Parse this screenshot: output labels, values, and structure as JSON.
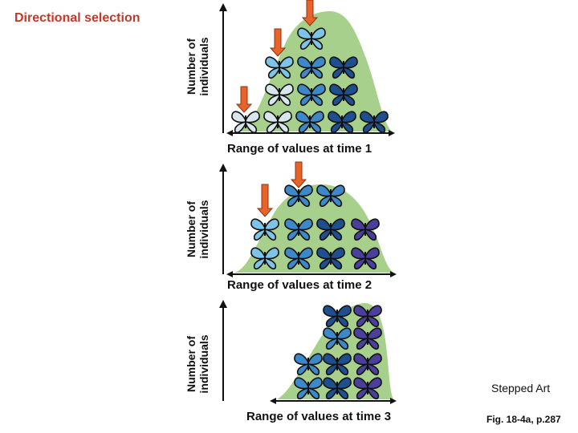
{
  "title": "Directional selection",
  "y_axis_label_line1": "Number of",
  "y_axis_label_line2": "individuals",
  "panels": [
    {
      "x_axis_label": "Range of values at time 1"
    },
    {
      "x_axis_label": "Range of values at time 2"
    },
    {
      "x_axis_label": "Range of values at time 3"
    }
  ],
  "stepped_art": "Stepped Art",
  "figure_ref": "Fig. 18-4a, p.287",
  "colors": {
    "title": "#c0392b",
    "curve_fill": "#a8d08d",
    "arrow": "#e8632a",
    "arrow_stroke": "#8a3412",
    "butterfly_pale": "#d8e6ee",
    "butterfly_light": "#7ec4e8",
    "butterfly_mid": "#3d88c8",
    "butterfly_dark": "#1e4f8f",
    "butterfly_purple": "#4a3f9a"
  }
}
